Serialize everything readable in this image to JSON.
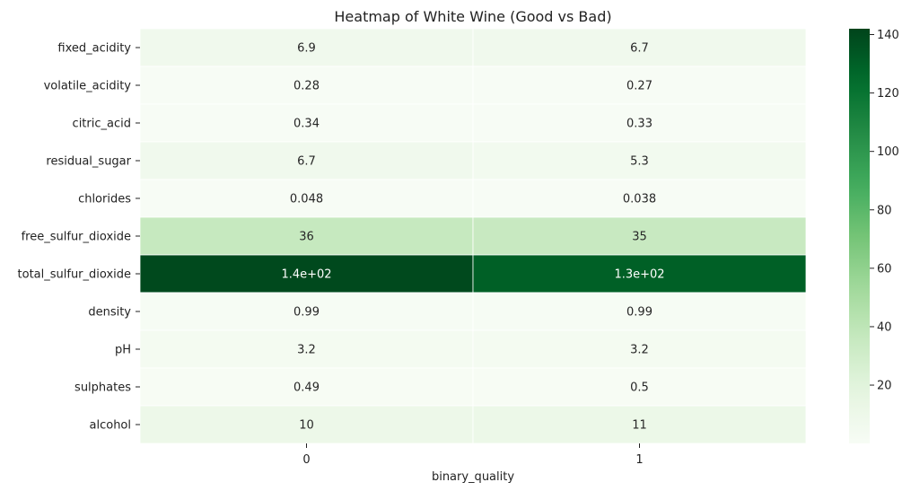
{
  "chart_data": {
    "type": "heatmap",
    "title": "Heatmap of White Wine (Good vs Bad)",
    "xlabel": "binary_quality",
    "ylabel": "",
    "columns": [
      "0",
      "1"
    ],
    "rows": [
      "fixed_acidity",
      "volatile_acidity",
      "citric_acid",
      "residual_sugar",
      "chlorides",
      "free_sulfur_dioxide",
      "total_sulfur_dioxide",
      "density",
      "pH",
      "sulphates",
      "alcohol"
    ],
    "values": [
      [
        6.9,
        6.7
      ],
      [
        0.28,
        0.27
      ],
      [
        0.34,
        0.33
      ],
      [
        6.7,
        5.3
      ],
      [
        0.048,
        0.038
      ],
      [
        36,
        35
      ],
      [
        140,
        130
      ],
      [
        0.99,
        0.99
      ],
      [
        3.2,
        3.2
      ],
      [
        0.49,
        0.5
      ],
      [
        10,
        11
      ]
    ],
    "annotations": [
      [
        "6.9",
        "6.7"
      ],
      [
        "0.28",
        "0.27"
      ],
      [
        "0.34",
        "0.33"
      ],
      [
        "6.7",
        "5.3"
      ],
      [
        "0.048",
        "0.038"
      ],
      [
        "36",
        "35"
      ],
      [
        "1.4e+02",
        "1.3e+02"
      ],
      [
        "0.99",
        "0.99"
      ],
      [
        "3.2",
        "3.2"
      ],
      [
        "0.49",
        "0.5"
      ],
      [
        "10",
        "11"
      ]
    ],
    "colormap": "Greens",
    "colorbar": {
      "min": 0.038,
      "max": 142,
      "ticks": [
        20,
        40,
        60,
        80,
        100,
        120,
        140
      ]
    },
    "grid": false
  }
}
